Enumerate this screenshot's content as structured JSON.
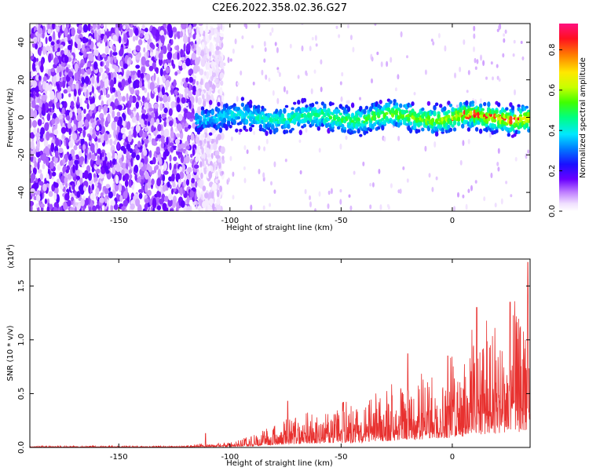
{
  "title": "C2E6.2022.358.02.36.G27",
  "chart_data": [
    {
      "type": "heatmap",
      "xlabel": "Height of straight line (km)",
      "ylabel": "Frequency (Hz)",
      "xlim": [
        -190,
        35
      ],
      "ylim": [
        -50,
        50
      ],
      "x_ticks": [
        -150,
        -100,
        -50,
        0
      ],
      "y_ticks": [
        40,
        20,
        0,
        -20,
        -40
      ],
      "colorbar": {
        "label": "Normalized spectral amplitude",
        "range": [
          0.0,
          0.93
        ],
        "ticks": [
          0.0,
          0.2,
          0.4,
          0.6,
          0.8
        ]
      },
      "description_of_data": {
        "noise_region_x": [
          -190,
          -115
        ],
        "signal_band_start_x": -115,
        "signal_center_frequency_hz": 0,
        "signal_band_halfwidth_hz": 6,
        "peak_amplitude_x": [
          0,
          30
        ]
      }
    },
    {
      "type": "line",
      "xlabel": "Height of straight line (km)",
      "ylabel": "SNR (10 * v/v)",
      "multiplier_label": "(x10",
      "multiplier_exp": "4",
      "multiplier_close": ")",
      "xlim": [
        -190,
        35
      ],
      "ylim": [
        0.0,
        1.75
      ],
      "x_ticks": [
        -150,
        -100,
        -50,
        0
      ],
      "y_ticks": [
        0.0,
        0.5,
        1.0,
        1.5
      ],
      "color": "#e8312f",
      "envelope": {
        "x": [
          -190,
          -150,
          -120,
          -110,
          -100,
          -90,
          -80,
          -70,
          -60,
          -50,
          -40,
          -30,
          -20,
          -10,
          0,
          10,
          20,
          30,
          35
        ],
        "y": [
          0.01,
          0.01,
          0.012,
          0.03,
          0.03,
          0.08,
          0.15,
          0.2,
          0.25,
          0.28,
          0.3,
          0.38,
          0.45,
          0.5,
          0.6,
          0.75,
          0.85,
          0.95,
          1.0
        ]
      },
      "spikes": [
        {
          "x": -111,
          "y": 0.13
        },
        {
          "x": -74,
          "y": 0.43
        },
        {
          "x": -49,
          "y": 0.42
        },
        {
          "x": -20,
          "y": 0.87
        },
        {
          "x": -2,
          "y": 0.85
        },
        {
          "x": 11,
          "y": 1.3
        },
        {
          "x": 26,
          "y": 1.35
        },
        {
          "x": 34,
          "y": 1.72
        }
      ]
    }
  ]
}
